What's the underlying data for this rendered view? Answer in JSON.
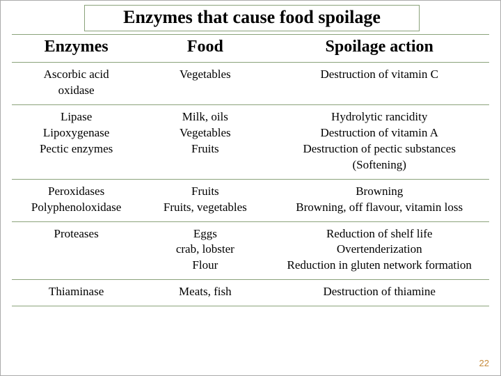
{
  "title": "Enzymes that cause food spoilage",
  "headers": {
    "c1": "Enzymes",
    "c2": "Food",
    "c3": "Spoilage action"
  },
  "rows": [
    {
      "enz": "Ascorbic acid\noxidase",
      "food": "Vegetables",
      "act": "Destruction of vitamin C"
    },
    {
      "enz": "Lipase\nLipoxygenase\nPectic enzymes",
      "food": "Milk, oils\nVegetables\nFruits",
      "act": "Hydrolytic rancidity\nDestruction of vitamin A\nDestruction of pectic substances\n(Softening)"
    },
    {
      "enz": "Peroxidases\nPolyphenoloxidase",
      "food": "Fruits\nFruits, vegetables",
      "act": "Browning\nBrowning, off flavour, vitamin loss"
    },
    {
      "enz": "Proteases",
      "food": "Eggs\ncrab, lobster\nFlour",
      "act": "Reduction of shelf life\nOvertenderization\nReduction in gluten network formation"
    },
    {
      "enz": "Thiaminase",
      "food": "Meats, fish",
      "act": "Destruction of thiamine"
    }
  ],
  "page_number": "22",
  "colors": {
    "rule": "#8aa27a",
    "pgnum": "#c68a3a"
  }
}
